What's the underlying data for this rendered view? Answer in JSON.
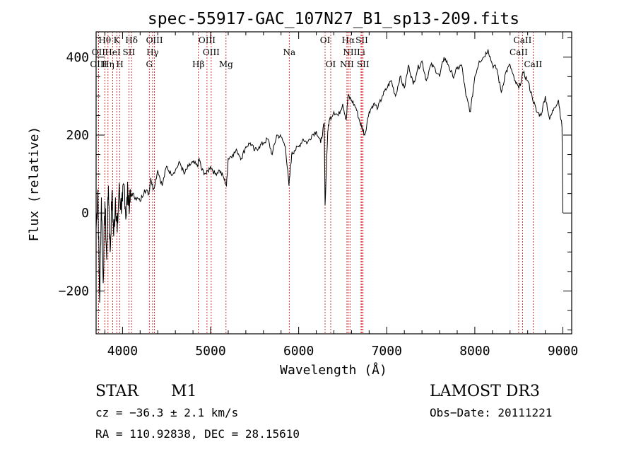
{
  "chart_data": {
    "type": "line",
    "title": "spec-55917-GAC_107N27_B1_sp13-209.fits",
    "xlabel": "Wavelength (Å)",
    "ylabel": "Flux (relative)",
    "xlim": [
      3700,
      9100
    ],
    "ylim": [
      -310,
      465
    ],
    "xticks": [
      4000,
      5000,
      6000,
      7000,
      8000,
      9000
    ],
    "yticks": [
      -200,
      0,
      200,
      400
    ],
    "grid": false,
    "series": [
      {
        "name": "flux",
        "x": [
          3700,
          3720,
          3740,
          3760,
          3780,
          3800,
          3820,
          3840,
          3860,
          3880,
          3900,
          3920,
          3940,
          3960,
          3980,
          4000,
          4020,
          4040,
          4060,
          4080,
          4100,
          4150,
          4200,
          4250,
          4300,
          4320,
          4350,
          4400,
          4450,
          4500,
          4550,
          4600,
          4650,
          4700,
          4750,
          4800,
          4850,
          4870,
          4900,
          4950,
          5000,
          5050,
          5100,
          5150,
          5180,
          5200,
          5250,
          5300,
          5350,
          5400,
          5450,
          5500,
          5550,
          5600,
          5650,
          5700,
          5750,
          5800,
          5850,
          5890,
          5920,
          5950,
          6000,
          6050,
          6100,
          6150,
          6200,
          6250,
          6290,
          6300,
          6330,
          6350,
          6400,
          6450,
          6500,
          6540,
          6560,
          6600,
          6650,
          6700,
          6720,
          6750,
          6800,
          6850,
          6900,
          6950,
          7000,
          7050,
          7100,
          7150,
          7200,
          7250,
          7300,
          7350,
          7400,
          7450,
          7500,
          7550,
          7600,
          7650,
          7700,
          7750,
          7800,
          7850,
          7900,
          7950,
          8000,
          8050,
          8100,
          8150,
          8200,
          8250,
          8300,
          8350,
          8400,
          8450,
          8500,
          8550,
          8600,
          8650,
          8700,
          8750,
          8800,
          8850,
          8900,
          8950,
          8990,
          9000
        ],
        "y": [
          -40,
          60,
          -230,
          40,
          -180,
          30,
          -120,
          70,
          -100,
          50,
          -60,
          40,
          -50,
          60,
          20,
          30,
          70,
          -10,
          60,
          20,
          50,
          40,
          30,
          60,
          50,
          90,
          60,
          110,
          70,
          120,
          100,
          110,
          130,
          100,
          120,
          130,
          120,
          140,
          110,
          100,
          120,
          100,
          110,
          90,
          70,
          140,
          150,
          160,
          140,
          170,
          180,
          160,
          170,
          180,
          190,
          150,
          200,
          195,
          170,
          70,
          150,
          160,
          170,
          190,
          180,
          200,
          210,
          180,
          230,
          20,
          210,
          240,
          260,
          250,
          280,
          240,
          300,
          290,
          270,
          230,
          220,
          200,
          260,
          280,
          270,
          300,
          320,
          340,
          300,
          350,
          320,
          380,
          330,
          370,
          390,
          340,
          380,
          370,
          350,
          400,
          380,
          350,
          370,
          380,
          300,
          260,
          350,
          390,
          400,
          420,
          380,
          370,
          310,
          360,
          380,
          340,
          320,
          360,
          340,
          300,
          260,
          250,
          300,
          240,
          270,
          290,
          220,
          0
        ]
      }
    ],
    "lines": [
      {
        "name": "Hθ",
        "wavelength": 3798,
        "row": 0
      },
      {
        "name": "K",
        "wavelength": 3934,
        "row": 0
      },
      {
        "name": "Hδ",
        "wavelength": 4102,
        "row": 0
      },
      {
        "name": "OIII",
        "wavelength": 4363,
        "row": 0
      },
      {
        "name": "OIII",
        "wavelength": 4959,
        "row": 0
      },
      {
        "name": "OI",
        "wavelength": 6300,
        "row": 0
      },
      {
        "name": "Hα",
        "wavelength": 6563,
        "row": 0
      },
      {
        "name": "SII",
        "wavelength": 6717,
        "row": 0
      },
      {
        "name": "CaII",
        "wavelength": 8542,
        "row": 0
      },
      {
        "name": "OII",
        "wavelength": 3727,
        "row": 1
      },
      {
        "name": "HeI",
        "wavelength": 3889,
        "row": 1
      },
      {
        "name": "SII",
        "wavelength": 4072,
        "row": 1
      },
      {
        "name": "Hγ",
        "wavelength": 4341,
        "row": 1
      },
      {
        "name": "OIII",
        "wavelength": 5007,
        "row": 1
      },
      {
        "name": "Na",
        "wavelength": 5893,
        "row": 1
      },
      {
        "name": "NII",
        "wavelength": 6583,
        "row": 1
      },
      {
        "name": "Li",
        "wavelength": 6708,
        "row": 1
      },
      {
        "name": "CaII",
        "wavelength": 8498,
        "row": 1
      },
      {
        "name": "OIII",
        "wavelength": 3727,
        "row": 2
      },
      {
        "name": "Hη",
        "wavelength": 3835,
        "row": 2
      },
      {
        "name": "H",
        "wavelength": 3970,
        "row": 2
      },
      {
        "name": "G",
        "wavelength": 4304,
        "row": 2
      },
      {
        "name": "Hβ",
        "wavelength": 4861,
        "row": 2
      },
      {
        "name": "Mg",
        "wavelength": 5175,
        "row": 2
      },
      {
        "name": "OI",
        "wavelength": 6364,
        "row": 2
      },
      {
        "name": "NII",
        "wavelength": 6548,
        "row": 2
      },
      {
        "name": "SII",
        "wavelength": 6731,
        "row": 2
      },
      {
        "name": "CaII",
        "wavelength": 8662,
        "row": 2
      }
    ]
  },
  "info": {
    "object_class": "STAR",
    "subclass": "M1",
    "survey": "LAMOST DR3",
    "cz": "cz = −36.3 ± 2.1 km/s",
    "obs_date": "Obs−Date: 20111221",
    "coords": "RA = 110.92838, DEC =  28.15610"
  }
}
